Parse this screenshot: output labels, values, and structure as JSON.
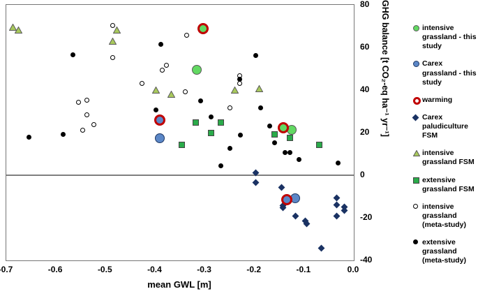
{
  "chart_data": {
    "type": "scatter",
    "title": "",
    "xlabel": "mean GWL [m]",
    "ylabel": "GHG balance [t CO2-eq ha-1 yr-1]",
    "ylabel_display": "GHG balance [t CO₂-eq ha⁻¹ yr⁻¹]",
    "xlim": [
      -0.7,
      0.0
    ],
    "ylim": [
      -40,
      80
    ],
    "grid": false,
    "legend_position": "right-outside",
    "x_ticks": [
      {
        "v": -0.7,
        "label": "-0.7"
      },
      {
        "v": -0.6,
        "label": "-0.6"
      },
      {
        "v": -0.5,
        "label": "-0.5"
      },
      {
        "v": -0.4,
        "label": "-0.4"
      },
      {
        "v": -0.3,
        "label": "-0.3"
      },
      {
        "v": -0.2,
        "label": "-0.2"
      },
      {
        "v": -0.1,
        "label": "-0.1"
      },
      {
        "v": 0.0,
        "label": "0.0"
      }
    ],
    "y_ticks": [
      {
        "v": 80,
        "label": "80"
      },
      {
        "v": 60,
        "label": "60"
      },
      {
        "v": 40,
        "label": "40"
      },
      {
        "v": 20,
        "label": "20"
      },
      {
        "v": 0,
        "label": "0"
      },
      {
        "v": -20,
        "label": "-20"
      },
      {
        "v": -40,
        "label": "-40"
      }
    ],
    "series": [
      {
        "name": "intensive grassland (meta-study)",
        "marker": "open-circle",
        "size": 7,
        "fill": "#ffffff",
        "stroke": "#000000",
        "ring": false,
        "points": [
          [
            -0.486,
            70.2
          ],
          [
            -0.486,
            55.1
          ],
          [
            -0.337,
            65.6
          ],
          [
            -0.378,
            51.5
          ],
          [
            -0.386,
            49.5
          ],
          [
            -0.427,
            43.0
          ],
          [
            -0.555,
            34.4
          ],
          [
            -0.537,
            35.4
          ],
          [
            -0.537,
            28.5
          ],
          [
            -0.524,
            23.9
          ],
          [
            -0.546,
            21.0
          ],
          [
            -0.339,
            39.3
          ],
          [
            -0.25,
            31.5
          ],
          [
            -0.23,
            46.6
          ],
          [
            -0.23,
            43.0
          ]
        ]
      },
      {
        "name": "extensive grassland (meta-study)",
        "marker": "dot",
        "size": 7,
        "fill": "#000000",
        "stroke": "#000000",
        "ring": false,
        "points": [
          [
            -0.566,
            56.7
          ],
          [
            -0.388,
            61.6
          ],
          [
            -0.198,
            56.1
          ],
          [
            -0.23,
            45.2
          ],
          [
            -0.655,
            18.0
          ],
          [
            -0.586,
            19.3
          ],
          [
            -0.398,
            30.5
          ],
          [
            -0.308,
            34.8
          ],
          [
            -0.288,
            27.5
          ],
          [
            -0.188,
            31.8
          ],
          [
            -0.169,
            23.0
          ],
          [
            -0.229,
            19.0
          ],
          [
            -0.159,
            15.4
          ],
          [
            -0.249,
            12.5
          ],
          [
            -0.268,
            4.3
          ],
          [
            -0.139,
            10.5
          ],
          [
            -0.129,
            10.8
          ],
          [
            -0.11,
            7.5
          ],
          [
            -0.032,
            5.6
          ]
        ]
      },
      {
        "name": "intensive grassland FSM",
        "marker": "triangle",
        "size": 10,
        "fill": "#a8c95c",
        "stroke": "#5a5a5a",
        "ring": false,
        "points": [
          [
            -0.686,
            69.5
          ],
          [
            -0.675,
            68.2
          ],
          [
            -0.477,
            68.2
          ],
          [
            -0.486,
            63.0
          ],
          [
            -0.398,
            40.0
          ],
          [
            -0.368,
            38.0
          ],
          [
            -0.239,
            40.0
          ],
          [
            -0.19,
            40.7
          ]
        ]
      },
      {
        "name": "extensive grassland FSM",
        "marker": "square",
        "size": 9,
        "fill": "#2aab4a",
        "stroke": "#444444",
        "ring": false,
        "points": [
          [
            -0.347,
            14.1
          ],
          [
            -0.318,
            24.9
          ],
          [
            -0.268,
            24.9
          ],
          [
            -0.287,
            19.7
          ],
          [
            -0.159,
            19.3
          ],
          [
            -0.129,
            17.4
          ],
          [
            -0.07,
            14.4
          ]
        ]
      },
      {
        "name": "Carex paludiculture FSM",
        "marker": "diamond",
        "size": 7,
        "fill": "#1a3263",
        "stroke": "#1a3263",
        "ring": false,
        "points": [
          [
            -0.198,
            1.0
          ],
          [
            -0.198,
            -3.6
          ],
          [
            -0.145,
            -5.9
          ],
          [
            -0.119,
            -10.2
          ],
          [
            -0.143,
            -14.1
          ],
          [
            -0.143,
            -15.4
          ],
          [
            -0.117,
            -19.3
          ],
          [
            -0.097,
            -21.6
          ],
          [
            -0.095,
            -22.9
          ],
          [
            -0.034,
            -10.8
          ],
          [
            -0.034,
            -13.8
          ],
          [
            -0.019,
            -14.8
          ],
          [
            -0.019,
            -16.7
          ],
          [
            -0.034,
            -19.3
          ],
          [
            -0.066,
            -34.1
          ]
        ]
      },
      {
        "name": "Carex grassland - this study",
        "marker": "circle",
        "size": 14,
        "fill": "#5b87c7",
        "stroke": "#1f3864",
        "ring": false,
        "points": [
          [
            -0.391,
            17.4
          ],
          [
            -0.118,
            -10.8
          ]
        ]
      },
      {
        "name": "Carex grassland - this study (warming)",
        "marker": "circle",
        "size": 16,
        "fill": "#5b87c7",
        "stroke": "#c00000",
        "ring": true,
        "points": [
          [
            -0.387,
            24.9
          ],
          [
            -0.131,
            -12.5
          ]
        ]
      },
      {
        "name": "intensive grassland - this study",
        "marker": "circle",
        "size": 14,
        "fill": "#62d962",
        "stroke": "#595959",
        "ring": false,
        "points": [
          [
            -0.316,
            49.5
          ],
          [
            -0.125,
            21.3
          ]
        ]
      },
      {
        "name": "intensive grassland - this study (warming)",
        "marker": "circle",
        "size": 16,
        "fill": "#62d962",
        "stroke": "#c00000",
        "ring": true,
        "points": [
          [
            -0.299,
            67.9
          ],
          [
            -0.138,
            21.3
          ]
        ]
      }
    ]
  },
  "legend": {
    "items": [
      {
        "label": "intensive grassland - this study",
        "marker": "circle",
        "size": 9,
        "fill": "#62d962",
        "stroke": "#595959",
        "ring": false
      },
      {
        "label": "Carex grassland - this study",
        "marker": "circle",
        "size": 9,
        "fill": "#5b87c7",
        "stroke": "#1f3864",
        "ring": false
      },
      {
        "label": "warming",
        "marker": "circle",
        "size": 11,
        "fill": "#ffffff",
        "stroke": "#c00000",
        "ring": true
      },
      {
        "label": "Carex paludiculture FSM",
        "marker": "diamond",
        "size": 7,
        "fill": "#1a3263",
        "stroke": "#1a3263",
        "ring": false
      },
      {
        "label": "intensive grassland FSM",
        "marker": "triangle",
        "size": 9,
        "fill": "#a8c95c",
        "stroke": "#5a5a5a",
        "ring": false
      },
      {
        "label": "extensive grassland FSM",
        "marker": "square",
        "size": 9,
        "fill": "#2aab4a",
        "stroke": "#444444",
        "ring": false
      },
      {
        "label": "intensive grassland (meta-study)",
        "marker": "open-circle",
        "size": 7,
        "fill": "#ffffff",
        "stroke": "#000000",
        "ring": false
      },
      {
        "label": "extensive grassland (meta-study)",
        "marker": "dot",
        "size": 7,
        "fill": "#000000",
        "stroke": "#000000",
        "ring": false
      }
    ]
  }
}
